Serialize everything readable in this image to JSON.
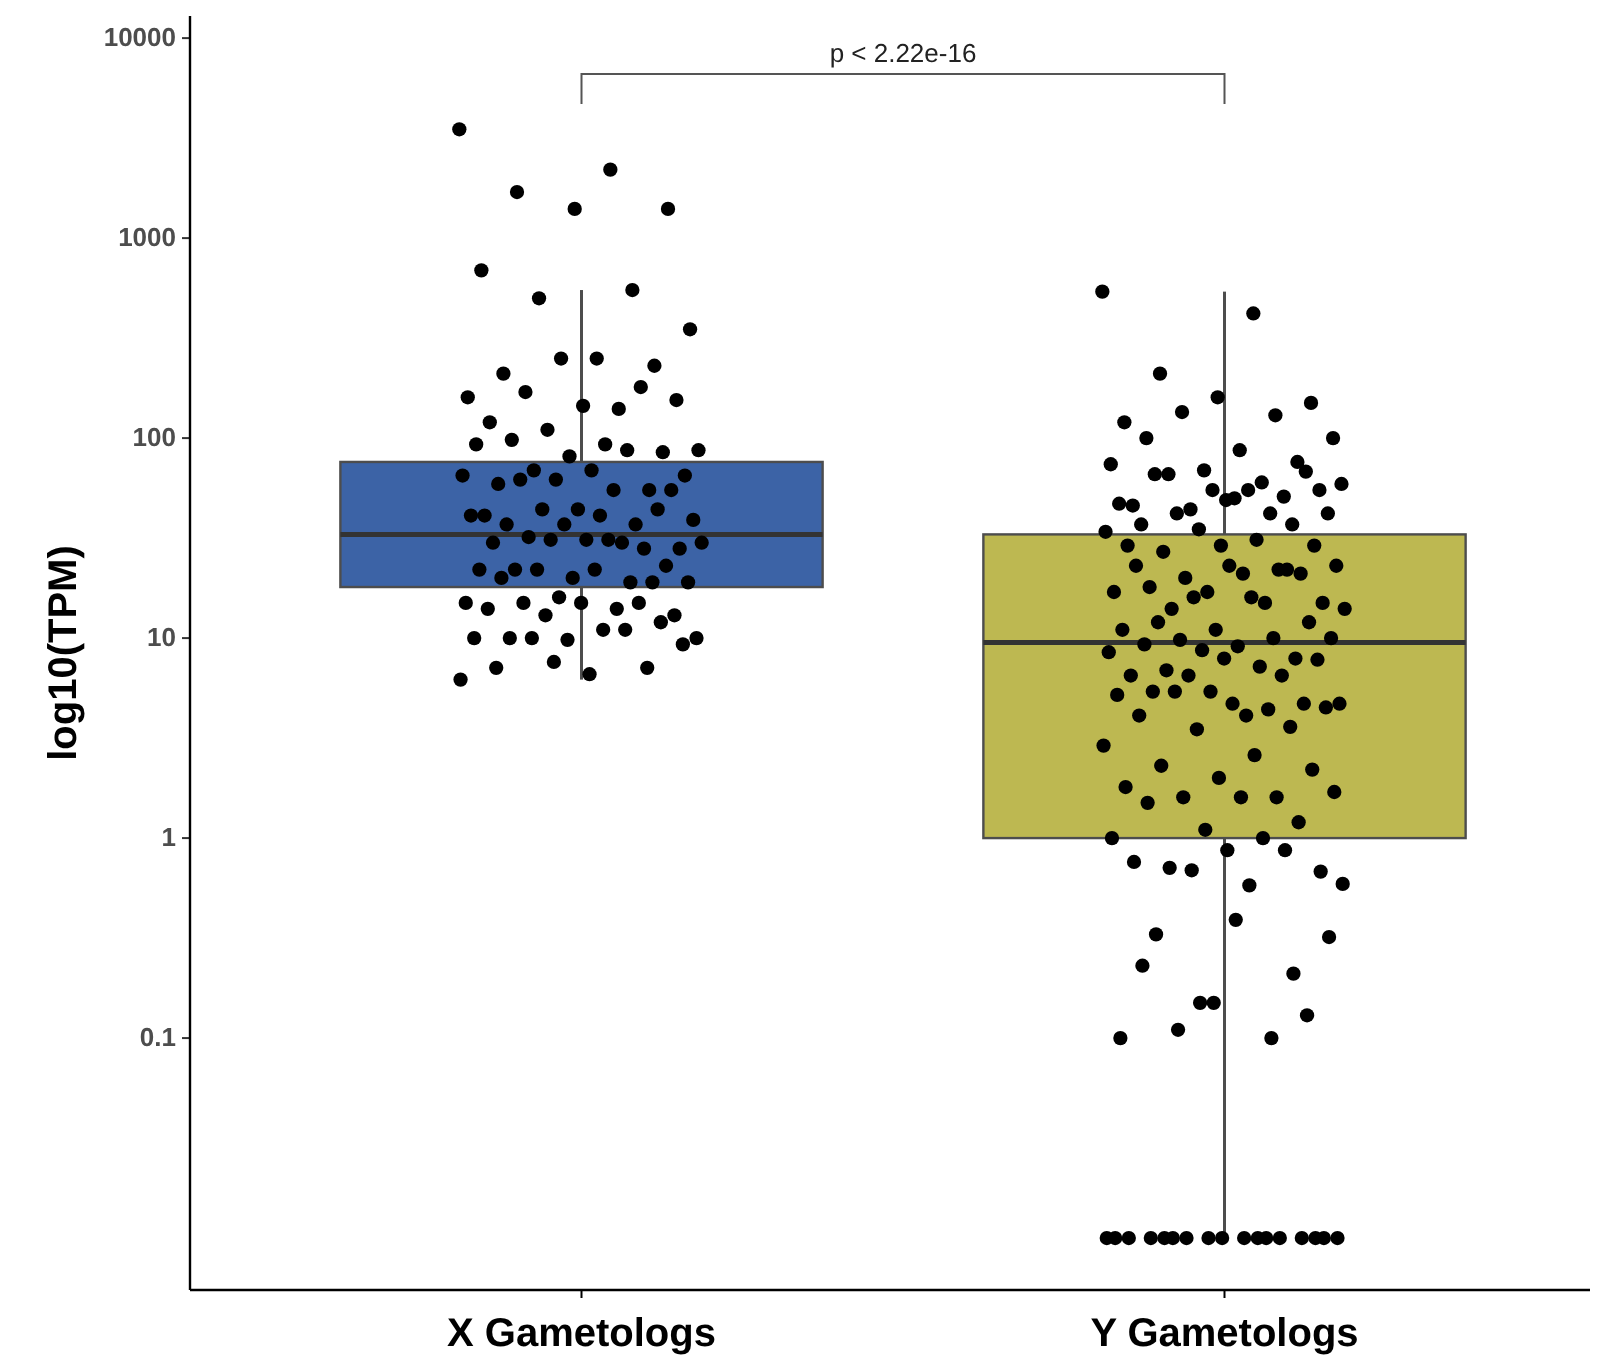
{
  "chart_data": {
    "type": "box",
    "ylabel": "log10(TPM)",
    "log": true,
    "marker": "circle",
    "categories": [
      "X Gametologs",
      "Y Gametologs"
    ],
    "colors": [
      "#3c63a6",
      "#bdb851"
    ],
    "boxes": [
      {
        "low": 6.2,
        "q1": 18,
        "median": 33,
        "q3": 76,
        "high": 550
      },
      {
        "low": 0.01,
        "q1": 1.0,
        "median": 9.5,
        "q3": 33,
        "high": 540
      }
    ],
    "ylim": [
      0.0055,
      12900
    ],
    "yticks": [
      0.1,
      1,
      10,
      100,
      1000,
      10000
    ],
    "annotations": [
      "p < 2.22e-16"
    ],
    "series": [
      {
        "type": "scatter",
        "color": "#000000",
        "x": [
          "X Gametologs",
          "X Gametologs",
          "X Gametologs",
          "X Gametologs",
          "X Gametologs",
          "X Gametologs",
          "X Gametologs",
          "X Gametologs",
          "X Gametologs",
          "X Gametologs",
          "X Gametologs",
          "X Gametologs",
          "X Gametologs",
          "X Gametologs",
          "X Gametologs",
          "X Gametologs",
          "X Gametologs",
          "X Gametologs",
          "X Gametologs",
          "X Gametologs",
          "X Gametologs",
          "X Gametologs",
          "X Gametologs",
          "X Gametologs",
          "X Gametologs",
          "X Gametologs",
          "X Gametologs",
          "X Gametologs",
          "X Gametologs",
          "X Gametologs",
          "X Gametologs",
          "X Gametologs",
          "X Gametologs",
          "X Gametologs",
          "X Gametologs",
          "X Gametologs",
          "X Gametologs",
          "X Gametologs",
          "X Gametologs",
          "X Gametologs",
          "X Gametologs",
          "X Gametologs",
          "X Gametologs",
          "X Gametologs",
          "X Gametologs",
          "X Gametologs",
          "X Gametologs",
          "X Gametologs",
          "X Gametologs",
          "X Gametologs",
          "X Gametologs",
          "X Gametologs",
          "X Gametologs",
          "X Gametologs",
          "X Gametologs",
          "X Gametologs",
          "X Gametologs",
          "X Gametologs",
          "X Gametologs",
          "X Gametologs",
          "X Gametologs",
          "X Gametologs",
          "X Gametologs",
          "X Gametologs",
          "X Gametologs",
          "X Gametologs",
          "X Gametologs",
          "X Gametologs",
          "X Gametologs",
          "X Gametologs",
          "X Gametologs",
          "X Gametologs",
          "X Gametologs",
          "X Gametologs",
          "X Gametologs",
          "X Gametologs",
          "X Gametologs",
          "X Gametologs",
          "X Gametologs",
          "X Gametologs",
          "X Gametologs",
          "X Gametologs",
          "X Gametologs",
          "X Gametologs",
          "X Gametologs",
          "X Gametologs",
          "X Gametologs",
          "X Gametologs",
          "X Gametologs",
          "X Gametologs"
        ],
        "values": [
          3500,
          2200,
          1700,
          1400,
          1400,
          690,
          550,
          500,
          350,
          250,
          210,
          230,
          250,
          160,
          140,
          170,
          155,
          145,
          120,
          180,
          110,
          87,
          93,
          98,
          85,
          81,
          93,
          87,
          69,
          65,
          69,
          59,
          55,
          62,
          65,
          55,
          62,
          55,
          44,
          41,
          37,
          44,
          39,
          41,
          37,
          44,
          37,
          41,
          30,
          32,
          28,
          31,
          30,
          28,
          31,
          30,
          31,
          22,
          23,
          20,
          22,
          19,
          22,
          19,
          22,
          20,
          19,
          16,
          15,
          14,
          15,
          13,
          15,
          14,
          15,
          13,
          10,
          11,
          10,
          12,
          9.8,
          10,
          11,
          10,
          9.3,
          6.6,
          7.1,
          7.1,
          7.6,
          6.2
        ]
      },
      {
        "type": "scatter",
        "color": "#000000",
        "x": [
          "Y Gametologs",
          "Y Gametologs",
          "Y Gametologs",
          "Y Gametologs",
          "Y Gametologs",
          "Y Gametologs",
          "Y Gametologs",
          "Y Gametologs",
          "Y Gametologs",
          "Y Gametologs",
          "Y Gametologs",
          "Y Gametologs",
          "Y Gametologs",
          "Y Gametologs",
          "Y Gametologs",
          "Y Gametologs",
          "Y Gametologs",
          "Y Gametologs",
          "Y Gametologs",
          "Y Gametologs",
          "Y Gametologs",
          "Y Gametologs",
          "Y Gametologs",
          "Y Gametologs",
          "Y Gametologs",
          "Y Gametologs",
          "Y Gametologs",
          "Y Gametologs",
          "Y Gametologs",
          "Y Gametologs",
          "Y Gametologs",
          "Y Gametologs",
          "Y Gametologs",
          "Y Gametologs",
          "Y Gametologs",
          "Y Gametologs",
          "Y Gametologs",
          "Y Gametologs",
          "Y Gametologs",
          "Y Gametologs",
          "Y Gametologs",
          "Y Gametologs",
          "Y Gametologs",
          "Y Gametologs",
          "Y Gametologs",
          "Y Gametologs",
          "Y Gametologs",
          "Y Gametologs",
          "Y Gametologs",
          "Y Gametologs",
          "Y Gametologs",
          "Y Gametologs",
          "Y Gametologs",
          "Y Gametologs",
          "Y Gametologs",
          "Y Gametologs",
          "Y Gametologs",
          "Y Gametologs",
          "Y Gametologs",
          "Y Gametologs",
          "Y Gametologs",
          "Y Gametologs",
          "Y Gametologs",
          "Y Gametologs",
          "Y Gametologs",
          "Y Gametologs",
          "Y Gametologs",
          "Y Gametologs",
          "Y Gametologs",
          "Y Gametologs",
          "Y Gametologs",
          "Y Gametologs",
          "Y Gametologs",
          "Y Gametologs",
          "Y Gametologs",
          "Y Gametologs",
          "Y Gametologs",
          "Y Gametologs",
          "Y Gametologs",
          "Y Gametologs",
          "Y Gametologs",
          "Y Gametologs",
          "Y Gametologs",
          "Y Gametologs",
          "Y Gametologs",
          "Y Gametologs",
          "Y Gametologs",
          "Y Gametologs",
          "Y Gametologs",
          "Y Gametologs",
          "Y Gametologs",
          "Y Gametologs",
          "Y Gametologs",
          "Y Gametologs",
          "Y Gametologs",
          "Y Gametologs",
          "Y Gametologs",
          "Y Gametologs",
          "Y Gametologs",
          "Y Gametologs",
          "Y Gametologs",
          "Y Gametologs",
          "Y Gametologs",
          "Y Gametologs",
          "Y Gametologs",
          "Y Gametologs",
          "Y Gametologs",
          "Y Gametologs",
          "Y Gametologs",
          "Y Gametologs",
          "Y Gametologs",
          "Y Gametologs",
          "Y Gametologs",
          "Y Gametologs",
          "Y Gametologs",
          "Y Gametologs",
          "Y Gametologs",
          "Y Gametologs",
          "Y Gametologs",
          "Y Gametologs",
          "Y Gametologs",
          "Y Gametologs",
          "Y Gametologs",
          "Y Gametologs",
          "Y Gametologs",
          "Y Gametologs",
          "Y Gametologs",
          "Y Gametologs",
          "Y Gametologs",
          "Y Gametologs",
          "Y Gametologs",
          "Y Gametologs",
          "Y Gametologs",
          "Y Gametologs",
          "Y Gametologs",
          "Y Gametologs",
          "Y Gametologs",
          "Y Gametologs",
          "Y Gametologs",
          "Y Gametologs"
        ],
        "values": [
          540,
          420,
          210,
          150,
          160,
          120,
          130,
          135,
          100,
          87,
          100,
          76,
          69,
          74,
          60,
          66,
          55,
          49,
          46,
          51,
          44,
          59,
          55,
          66,
          68,
          55,
          47,
          42,
          42,
          42,
          50,
          37,
          37,
          35,
          34,
          31,
          27,
          29,
          29,
          29,
          22,
          20,
          23,
          21,
          18,
          21,
          17,
          17,
          15,
          14,
          15,
          23,
          23,
          22,
          16,
          14,
          16,
          12,
          12,
          11,
          11,
          10,
          9.8,
          10,
          9.1,
          9.3,
          7.9,
          8.7,
          8.5,
          7.2,
          6.9,
          7.8,
          7.9,
          6.5,
          6.5,
          6.5,
          4.7,
          4.1,
          5.4,
          4.7,
          5.4,
          5.2,
          4.4,
          5.4,
          4.5,
          4.7,
          4.1,
          3.6,
          3.5,
          2.9,
          2.6,
          2.3,
          2.2,
          2.0,
          1.8,
          1.6,
          1.6,
          1.7,
          1.6,
          1.5,
          1.2,
          1.1,
          1.0,
          1.0,
          0.71,
          0.68,
          0.87,
          0.76,
          0.87,
          0.69,
          0.59,
          0.58,
          0.33,
          0.13,
          0.15,
          0.1,
          0.1,
          0.11,
          0.32,
          0.39,
          0.23,
          0.21,
          0.15,
          0.01,
          0.01,
          0.01,
          0.01,
          0.01,
          0.01,
          0.01,
          0.01,
          0.01,
          0.01,
          0.01,
          0.01,
          0.01,
          0.01,
          0.01,
          0.01,
          0.01
        ]
      }
    ]
  }
}
